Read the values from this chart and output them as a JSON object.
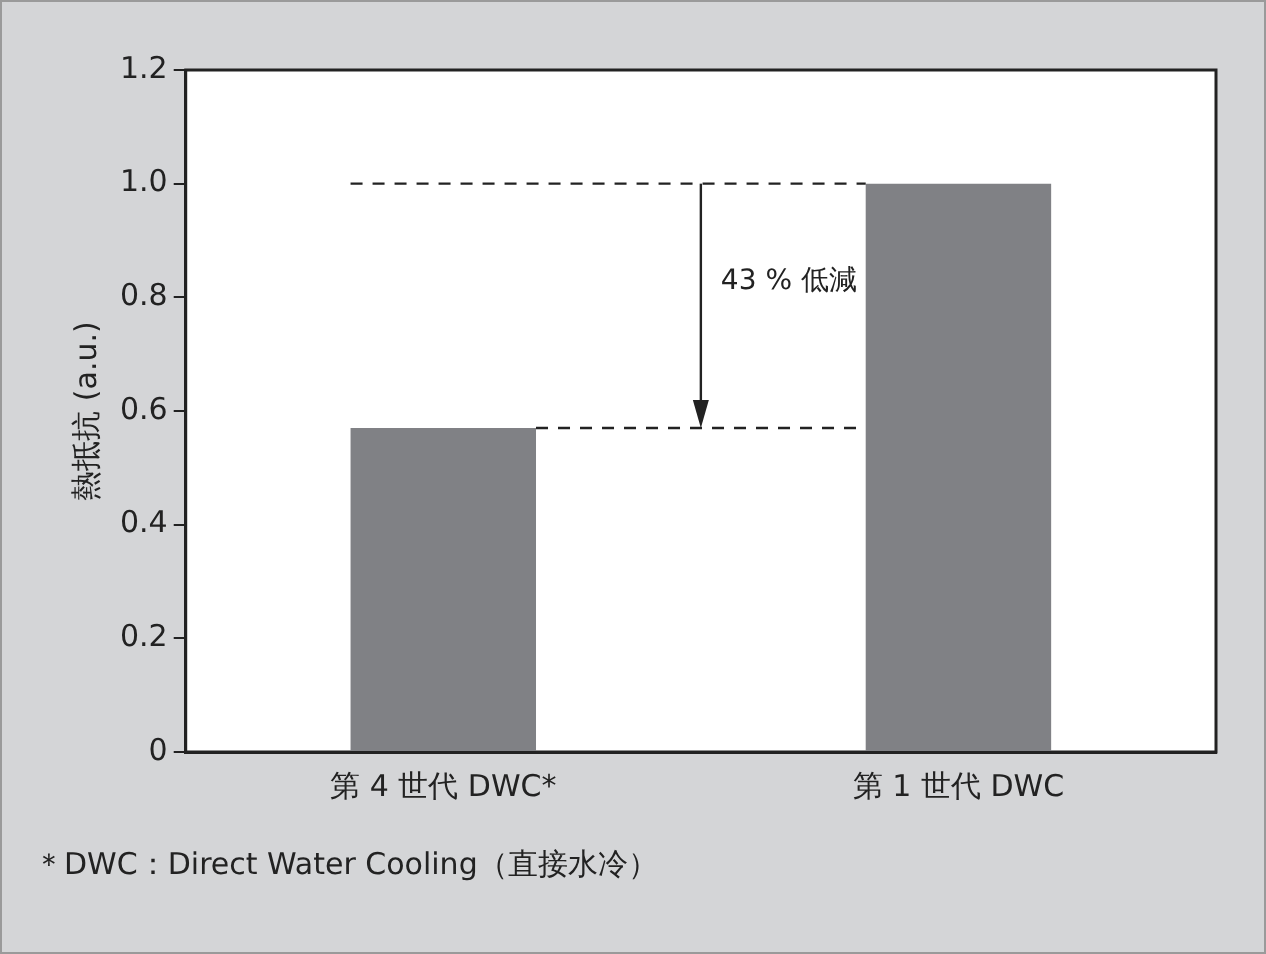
{
  "chart_data": {
    "type": "bar",
    "ylabel": "熱抵抗 (a.u.)",
    "categories": [
      "第 4 世代 DWC*",
      "第 1 世代 DWC"
    ],
    "values": [
      0.57,
      1.0
    ],
    "color": "#808185",
    "ylim": [
      0,
      1.2
    ],
    "yticks": [
      0,
      0.2,
      0.4,
      0.6,
      0.8,
      {
        "value": 1.0,
        "label": "1.0"
      },
      {
        "value": 1.2,
        "label": "1.2"
      }
    ],
    "grid": false,
    "legend": false,
    "ref_lines": [
      {
        "axis": "y",
        "value": 1.0,
        "line_style": "dashed"
      },
      {
        "axis": "y",
        "value": 0.57,
        "line_style": "dashed"
      }
    ],
    "annotations": [
      "43 % 低減",
      "＊DWC：Direct Water Cooling（直接水冷）"
    ]
  }
}
